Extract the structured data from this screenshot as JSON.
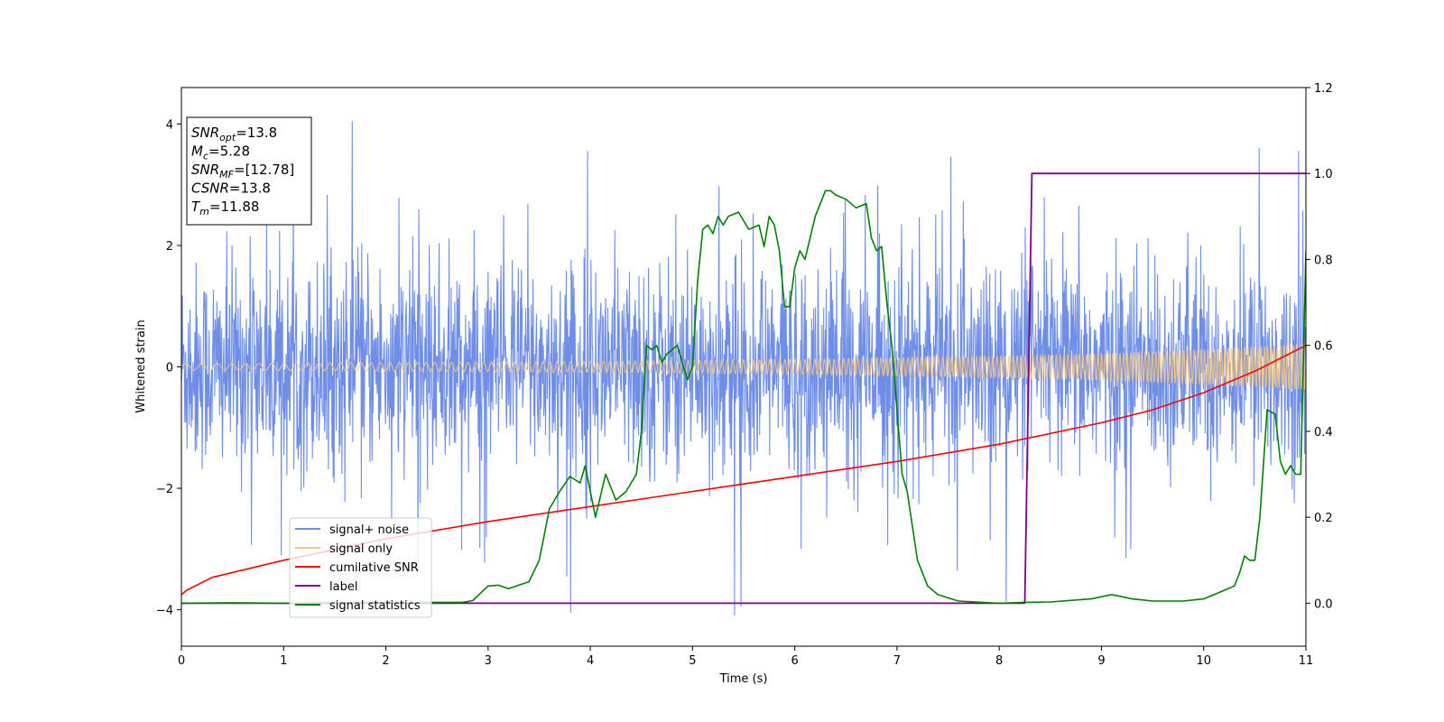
{
  "chart_data": {
    "type": "line",
    "xlabel": "Time (s)",
    "ylabel": "Whitened strain",
    "xlim": [
      0,
      11
    ],
    "ylim": [
      -4.6,
      4.6
    ],
    "y2lim": [
      -0.1,
      1.2
    ],
    "xticks": [
      "0",
      "1",
      "2",
      "3",
      "4",
      "5",
      "6",
      "7",
      "8",
      "9",
      "10",
      "11"
    ],
    "yticks": [
      {
        "v": -4,
        "label": "−4"
      },
      {
        "v": -2,
        "label": "−2"
      },
      {
        "v": 0,
        "label": "0"
      },
      {
        "v": 2,
        "label": "2"
      },
      {
        "v": 4,
        "label": "4"
      }
    ],
    "y2ticks": [
      "0.0",
      "0.2",
      "0.4",
      "0.6",
      "0.8",
      "1.0",
      "1.2"
    ],
    "annotation": [
      {
        "base": "SNR",
        "sub": "opt",
        "rest": "=13.8"
      },
      {
        "base": "M",
        "sub": "c",
        "rest": "=5.28"
      },
      {
        "base": "SNR",
        "sub": "MF",
        "rest": "=[12.78]"
      },
      {
        "base": "CSNR",
        "sub": "",
        "rest": "=13.8"
      },
      {
        "base": "T",
        "sub": "m",
        "rest": "=11.88"
      }
    ],
    "legend": {
      "placement": "lower-left",
      "entries": [
        {
          "label": "signal+ noise",
          "color": "#6f8ee8"
        },
        {
          "label": "signal only",
          "color": "#f5c77e"
        },
        {
          "label": "cumilative SNR",
          "color": "#ff0000"
        },
        {
          "label": "label",
          "color": "#800080"
        },
        {
          "label": "signal statistics",
          "color": "#008000"
        }
      ]
    },
    "series": [
      {
        "key": "noise",
        "axis": "left",
        "color": "#6f8ee8",
        "style": "noise",
        "amplitude_typical": 2.2,
        "amplitude_peak": 4.1
      },
      {
        "key": "signal",
        "axis": "left",
        "color": "#f5c77e",
        "style": "chirp",
        "envelope": [
          [
            0,
            0.05
          ],
          [
            2,
            0.07
          ],
          [
            4,
            0.09
          ],
          [
            6,
            0.12
          ],
          [
            8,
            0.18
          ],
          [
            9,
            0.22
          ],
          [
            10,
            0.29
          ],
          [
            11,
            0.38
          ]
        ]
      },
      {
        "key": "csnr",
        "axis": "right",
        "color": "#ff0000",
        "x": [
          0,
          0.05,
          0.3,
          1,
          2,
          3,
          4,
          5,
          6,
          7,
          8,
          9,
          9.5,
          10,
          10.5,
          11
        ],
        "y": [
          0.02,
          0.03,
          0.06,
          0.1,
          0.15,
          0.19,
          0.225,
          0.26,
          0.295,
          0.33,
          0.37,
          0.42,
          0.45,
          0.49,
          0.54,
          0.6
        ]
      },
      {
        "key": "label",
        "axis": "right",
        "color": "#800080",
        "x": [
          0,
          8.25,
          8.32,
          11
        ],
        "y": [
          0,
          0,
          1,
          1
        ]
      },
      {
        "key": "stats",
        "axis": "right",
        "color": "#008000",
        "x": [
          0,
          0.5,
          1,
          1.5,
          2,
          2.5,
          2.75,
          2.85,
          3.0,
          3.1,
          3.2,
          3.3,
          3.4,
          3.5,
          3.6,
          3.7,
          3.8,
          3.9,
          3.95,
          4.05,
          4.1,
          4.15,
          4.25,
          4.35,
          4.45,
          4.5,
          4.55,
          4.6,
          4.65,
          4.7,
          4.75,
          4.85,
          4.95,
          5.0,
          5.05,
          5.1,
          5.15,
          5.2,
          5.25,
          5.3,
          5.35,
          5.45,
          5.55,
          5.65,
          5.7,
          5.75,
          5.8,
          5.85,
          5.9,
          5.95,
          6.0,
          6.05,
          6.1,
          6.15,
          6.2,
          6.3,
          6.35,
          6.4,
          6.5,
          6.6,
          6.7,
          6.75,
          6.8,
          6.85,
          6.9,
          6.95,
          7.05,
          7.1,
          7.2,
          7.3,
          7.4,
          7.6,
          8.0,
          8.25,
          8.5,
          8.9,
          9.0,
          9.1,
          9.2,
          9.3,
          9.5,
          9.8,
          10.0,
          10.1,
          10.2,
          10.3,
          10.35,
          10.4,
          10.45,
          10.5,
          10.55,
          10.62,
          10.7,
          10.75,
          10.8,
          10.85,
          10.9,
          10.95,
          11.0
        ],
        "y": [
          0,
          0.001,
          0.0,
          0.001,
          0.002,
          0.002,
          0.002,
          0.006,
          0.04,
          0.042,
          0.034,
          0.042,
          0.05,
          0.1,
          0.22,
          0.26,
          0.295,
          0.28,
          0.32,
          0.2,
          0.25,
          0.3,
          0.24,
          0.26,
          0.3,
          0.4,
          0.6,
          0.59,
          0.6,
          0.56,
          0.58,
          0.6,
          0.52,
          0.55,
          0.75,
          0.87,
          0.88,
          0.86,
          0.9,
          0.88,
          0.9,
          0.91,
          0.87,
          0.88,
          0.83,
          0.9,
          0.88,
          0.82,
          0.69,
          0.69,
          0.78,
          0.82,
          0.8,
          0.85,
          0.9,
          0.96,
          0.96,
          0.95,
          0.94,
          0.92,
          0.93,
          0.85,
          0.82,
          0.83,
          0.7,
          0.6,
          0.3,
          0.26,
          0.1,
          0.04,
          0.02,
          0.005,
          0.0,
          0.002,
          0.003,
          0.01,
          0.015,
          0.02,
          0.015,
          0.01,
          0.005,
          0.005,
          0.01,
          0.02,
          0.03,
          0.04,
          0.07,
          0.11,
          0.1,
          0.1,
          0.2,
          0.45,
          0.44,
          0.33,
          0.3,
          0.32,
          0.3,
          0.3,
          0.82
        ]
      }
    ]
  }
}
